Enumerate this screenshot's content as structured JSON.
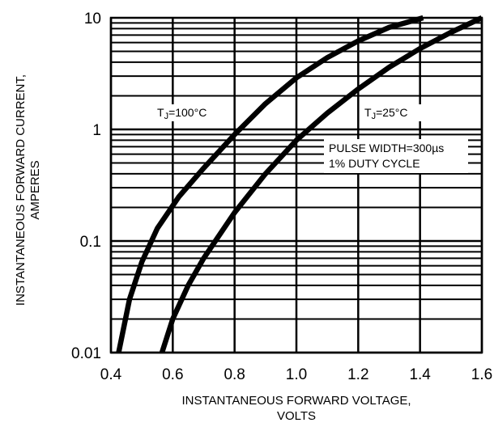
{
  "chart_data": {
    "type": "line",
    "x_scale": "linear",
    "y_scale": "log",
    "xlim": [
      0.4,
      1.6
    ],
    "ylim": [
      0.01,
      10
    ],
    "x_ticks": [
      0.4,
      0.6,
      0.8,
      1.0,
      1.2,
      1.4,
      1.6
    ],
    "x_tick_labels": [
      "0.4",
      "0.6",
      "0.8",
      "1.0",
      "1.2",
      "1.4",
      "1.6"
    ],
    "y_ticks": [
      0.01,
      0.1,
      1,
      10
    ],
    "y_tick_labels": [
      "0.01",
      "0.1",
      "1",
      "10"
    ],
    "xlabel": [
      "INSTANTANEOUS FORWARD VOLTAGE,",
      "VOLTS"
    ],
    "ylabel": [
      "INSTANTANEOUS FORWARD CURRENT,",
      "AMPERES"
    ],
    "grid": true,
    "series": [
      {
        "name": "TJ=100°C",
        "x": [
          0.425,
          0.46,
          0.5,
          0.55,
          0.62,
          0.7,
          0.8,
          0.9,
          1.0,
          1.1,
          1.2,
          1.3,
          1.41
        ],
        "y": [
          0.01,
          0.03,
          0.065,
          0.13,
          0.25,
          0.45,
          0.9,
          1.7,
          2.9,
          4.4,
          6.2,
          8.2,
          10
        ]
      },
      {
        "name": "TJ=25°C",
        "x": [
          0.565,
          0.6,
          0.65,
          0.7,
          0.8,
          0.9,
          1.0,
          1.1,
          1.2,
          1.3,
          1.4,
          1.5,
          1.6
        ],
        "y": [
          0.01,
          0.02,
          0.04,
          0.07,
          0.18,
          0.4,
          0.8,
          1.4,
          2.3,
          3.6,
          5.3,
          7.4,
          10
        ]
      }
    ],
    "annotations": {
      "label_100": {
        "prefix": "T",
        "sub": "J",
        "suffix": "=100°C"
      },
      "label_25": {
        "prefix": "T",
        "sub": "J",
        "suffix": "=25°C"
      },
      "note_line1": "PULSE WIDTH=300µs",
      "note_line2": "1% DUTY CYCLE"
    }
  }
}
